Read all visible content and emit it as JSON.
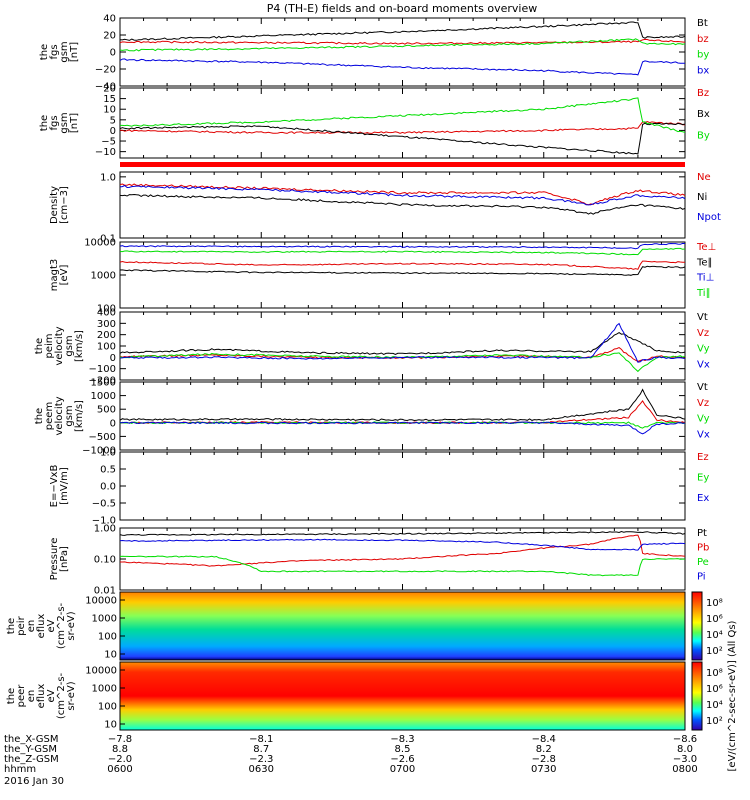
{
  "title": "P4 (TH-E) fields and on-board moments overview",
  "chart_data": [
    {
      "type": "line",
      "ylabel": [
        "the",
        "fgs",
        "gsm",
        "[nT]"
      ],
      "ylim": [
        -40,
        40
      ],
      "yticks": [
        {
          "v": 40,
          "t": "40"
        },
        {
          "v": 20,
          "t": "20"
        },
        {
          "v": 0,
          "t": "0"
        },
        {
          "v": -20,
          "t": "−20"
        },
        {
          "v": -40,
          "t": "−40"
        }
      ],
      "series": [
        {
          "name": "Bt",
          "color": "#000000",
          "x": [
            0,
            30,
            60,
            90,
            110,
            111,
            120
          ],
          "y": [
            14,
            19,
            24,
            30,
            35,
            17,
            18
          ]
        },
        {
          "name": "bz",
          "color": "#e00000",
          "x": [
            0,
            30,
            60,
            90,
            110,
            111,
            120
          ],
          "y": [
            12,
            11,
            10,
            11,
            12,
            14,
            12
          ]
        },
        {
          "name": "by",
          "color": "#00dd00",
          "x": [
            0,
            30,
            60,
            90,
            110,
            111,
            120
          ],
          "y": [
            2,
            4,
            7,
            10,
            15,
            10,
            9
          ]
        },
        {
          "name": "bx",
          "color": "#0000dd",
          "x": [
            0,
            30,
            60,
            90,
            110,
            111,
            120
          ],
          "y": [
            -9,
            -12,
            -18,
            -22,
            -27,
            -11,
            -13
          ]
        }
      ]
    },
    {
      "type": "line",
      "ylabel": [
        "the",
        "fgs",
        "gsm",
        "[nT]"
      ],
      "ylim": [
        -13,
        20
      ],
      "yticks": [
        {
          "v": 20,
          "t": "20"
        },
        {
          "v": 15,
          "t": "15"
        },
        {
          "v": 10,
          "t": "10"
        },
        {
          "v": 5,
          "t": "5"
        },
        {
          "v": 0,
          "t": "0"
        },
        {
          "v": -5,
          "t": "−5"
        },
        {
          "v": -10,
          "t": "−10"
        }
      ],
      "series": [
        {
          "name": "Bz",
          "color": "#e00000",
          "x": [
            0,
            30,
            60,
            90,
            110,
            111,
            120
          ],
          "y": [
            0,
            -1,
            -1,
            0,
            1,
            4,
            3
          ]
        },
        {
          "name": "Bx",
          "color": "#000000",
          "x": [
            0,
            30,
            60,
            90,
            110,
            111,
            120
          ],
          "y": [
            1,
            2,
            -3,
            -8,
            -11,
            3,
            3
          ]
        },
        {
          "name": "By",
          "color": "#00dd00",
          "x": [
            0,
            30,
            60,
            90,
            110,
            111,
            120
          ],
          "y": [
            2,
            4,
            7,
            10,
            15,
            4,
            -1
          ]
        }
      ]
    },
    {
      "type": "line",
      "ylabel": [
        "Density",
        "[cm−3]"
      ],
      "scale": "log",
      "ylim": [
        0.1,
        1.2
      ],
      "yticks": [
        {
          "v": 1.0,
          "t": "1.0"
        },
        {
          "v": 0.1,
          "t": "0.1"
        }
      ],
      "series": [
        {
          "name": "Ne",
          "color": "#e00000",
          "x": [
            0,
            30,
            60,
            90,
            100,
            110,
            120
          ],
          "y": [
            0.75,
            0.65,
            0.55,
            0.55,
            0.35,
            0.6,
            0.5
          ]
        },
        {
          "name": "Ni",
          "color": "#000000",
          "x": [
            0,
            30,
            60,
            90,
            100,
            110,
            120
          ],
          "y": [
            0.5,
            0.45,
            0.35,
            0.32,
            0.25,
            0.35,
            0.3
          ]
        },
        {
          "name": "Npot",
          "color": "#0000dd",
          "x": [
            0,
            30,
            60,
            90,
            100,
            110,
            120
          ],
          "y": [
            0.7,
            0.62,
            0.5,
            0.45,
            0.35,
            0.5,
            0.45
          ]
        }
      ]
    },
    {
      "type": "line",
      "ylabel": [
        "magt3",
        "[eV]"
      ],
      "scale": "log",
      "ylim": [
        100,
        10000
      ],
      "yticks": [
        {
          "v": 10000,
          "t": "10000"
        },
        {
          "v": 1000,
          "t": "1000"
        },
        {
          "v": 100,
          "t": "100"
        }
      ],
      "series": [
        {
          "name": "Te⊥",
          "color": "#e00000",
          "x": [
            0,
            30,
            60,
            90,
            110,
            111,
            120
          ],
          "y": [
            2500,
            2000,
            2200,
            2100,
            1500,
            2600,
            2400
          ]
        },
        {
          "name": "Te∥",
          "color": "#000000",
          "x": [
            0,
            30,
            60,
            90,
            110,
            111,
            120
          ],
          "y": [
            1400,
            1200,
            1150,
            1100,
            1000,
            1800,
            1700
          ]
        },
        {
          "name": "Ti⊥",
          "color": "#0000dd",
          "x": [
            0,
            30,
            60,
            90,
            110,
            111,
            120
          ],
          "y": [
            7500,
            7300,
            7200,
            7000,
            6500,
            8500,
            8800
          ]
        },
        {
          "name": "Ti∥",
          "color": "#00dd00",
          "x": [
            0,
            30,
            60,
            90,
            110,
            111,
            120
          ],
          "y": [
            5200,
            5000,
            5100,
            4800,
            4200,
            6000,
            6200
          ]
        }
      ]
    },
    {
      "type": "line",
      "ylabel": [
        "the",
        "peim",
        "velocity",
        "gsm",
        "[km/s]"
      ],
      "ylim": [
        -200,
        400
      ],
      "yticks": [
        {
          "v": 400,
          "t": "400"
        },
        {
          "v": 300,
          "t": "300"
        },
        {
          "v": 200,
          "t": "200"
        },
        {
          "v": 100,
          "t": "100"
        },
        {
          "v": 0,
          "t": "0"
        },
        {
          "v": -100,
          "t": "−100"
        },
        {
          "v": -200,
          "t": "−200"
        }
      ],
      "series": [
        {
          "name": "Vt",
          "color": "#000000",
          "x": [
            0,
            20,
            40,
            60,
            80,
            100,
            106,
            110,
            114,
            120
          ],
          "y": [
            40,
            70,
            40,
            30,
            60,
            50,
            220,
            140,
            60,
            40
          ]
        },
        {
          "name": "Vz",
          "color": "#e00000",
          "x": [
            0,
            20,
            40,
            60,
            80,
            100,
            106,
            110,
            114,
            120
          ],
          "y": [
            5,
            20,
            0,
            -5,
            10,
            0,
            80,
            -40,
            10,
            0
          ]
        },
        {
          "name": "Vy",
          "color": "#00dd00",
          "x": [
            0,
            20,
            40,
            60,
            80,
            100,
            106,
            110,
            114,
            120
          ],
          "y": [
            0,
            30,
            10,
            0,
            20,
            0,
            40,
            -120,
            0,
            10
          ]
        },
        {
          "name": "Vx",
          "color": "#0000dd",
          "x": [
            0,
            20,
            40,
            60,
            80,
            100,
            106,
            110,
            114,
            120
          ],
          "y": [
            -5,
            0,
            -10,
            0,
            0,
            -5,
            300,
            -40,
            0,
            -10
          ]
        }
      ]
    },
    {
      "type": "line",
      "ylabel": [
        "the",
        "peem",
        "velocity",
        "gsm",
        "[km/s]"
      ],
      "ylim": [
        -1000,
        1500
      ],
      "yticks": [
        {
          "v": 1500,
          "t": "1500"
        },
        {
          "v": 1000,
          "t": "1000"
        },
        {
          "v": 500,
          "t": "500"
        },
        {
          "v": 0,
          "t": "0"
        },
        {
          "v": -500,
          "t": "−500"
        },
        {
          "v": -1000,
          "t": "−1000"
        }
      ],
      "series": [
        {
          "name": "Vt",
          "color": "#000000",
          "x": [
            0,
            30,
            60,
            90,
            108,
            111,
            114,
            120
          ],
          "y": [
            120,
            130,
            110,
            120,
            500,
            1200,
            300,
            150
          ]
        },
        {
          "name": "Vz",
          "color": "#e00000",
          "x": [
            0,
            30,
            60,
            90,
            108,
            111,
            114,
            120
          ],
          "y": [
            0,
            20,
            0,
            10,
            200,
            800,
            100,
            0
          ]
        },
        {
          "name": "Vy",
          "color": "#00dd00",
          "x": [
            0,
            30,
            60,
            90,
            108,
            111,
            114,
            120
          ],
          "y": [
            0,
            0,
            10,
            0,
            0,
            -200,
            0,
            0
          ]
        },
        {
          "name": "Vx",
          "color": "#0000dd",
          "x": [
            0,
            30,
            60,
            90,
            108,
            111,
            114,
            120
          ],
          "y": [
            0,
            -10,
            0,
            0,
            -100,
            -400,
            -50,
            0
          ]
        }
      ]
    },
    {
      "type": "line",
      "ylabel": [
        "E=−VxB",
        "[mV/m]"
      ],
      "ylim": [
        -1,
        1
      ],
      "yticks": [
        {
          "v": 1.0,
          "t": "1.0"
        },
        {
          "v": 0.5,
          "t": "0.5"
        },
        {
          "v": 0,
          "t": "0.0"
        },
        {
          "v": -0.5,
          "t": "−0.5"
        },
        {
          "v": -1.0,
          "t": "−1.0"
        }
      ],
      "series": [
        {
          "name": "Ez",
          "color": "#e00000",
          "x": [],
          "y": []
        },
        {
          "name": "Ey",
          "color": "#00dd00",
          "x": [],
          "y": []
        },
        {
          "name": "Ex",
          "color": "#0000dd",
          "x": [],
          "y": []
        }
      ]
    },
    {
      "type": "line",
      "ylabel": [
        "Pressure",
        "[nPa]"
      ],
      "scale": "log",
      "ylim": [
        0.01,
        1.0
      ],
      "yticks": [
        {
          "v": 1.0,
          "t": "1.00"
        },
        {
          "v": 0.1,
          "t": "0.10"
        },
        {
          "v": 0.01,
          "t": "0.01"
        }
      ],
      "series": [
        {
          "name": "Pt",
          "color": "#000000",
          "x": [
            0,
            30,
            60,
            90,
            110,
            120
          ],
          "y": [
            0.6,
            0.62,
            0.65,
            0.7,
            0.75,
            0.65
          ]
        },
        {
          "name": "Pb",
          "color": "#e00000",
          "x": [
            0,
            20,
            40,
            60,
            80,
            100,
            110,
            111,
            120
          ],
          "y": [
            0.08,
            0.06,
            0.09,
            0.1,
            0.15,
            0.3,
            0.6,
            0.15,
            0.12
          ]
        },
        {
          "name": "Pe",
          "color": "#00dd00",
          "x": [
            0,
            20,
            30,
            60,
            90,
            100,
            110,
            111,
            120
          ],
          "y": [
            0.12,
            0.12,
            0.04,
            0.04,
            0.04,
            0.03,
            0.03,
            0.1,
            0.1
          ]
        },
        {
          "name": "Pi",
          "color": "#0000dd",
          "x": [
            0,
            20,
            40,
            60,
            80,
            100,
            110,
            111,
            120
          ],
          "y": [
            0.38,
            0.4,
            0.42,
            0.4,
            0.35,
            0.2,
            0.2,
            0.3,
            0.32
          ]
        }
      ]
    },
    {
      "type": "heatmap",
      "ylabel": [
        "the",
        "peir",
        "en",
        "eflux",
        "eV",
        "(cm^2-s-",
        "sr-eV)"
      ],
      "yticks": [
        "10000",
        "1000",
        "100",
        "10"
      ],
      "colorbar_ticks": [
        "10⁸",
        "10⁶",
        "10⁴",
        "10²"
      ]
    },
    {
      "type": "heatmap",
      "ylabel": [
        "the",
        "peer",
        "en",
        "eflux",
        "eV",
        "(cm^2-s-",
        "sr-eV)"
      ],
      "yticks": [
        "10000",
        "1000",
        "100",
        "10"
      ],
      "colorbar_ticks": [
        "10⁸",
        "10⁶",
        "10⁴",
        "10²"
      ]
    }
  ],
  "colorbar_label": "[eV/(cm^2-sec-sr-eV)] (All Qs)",
  "x_axis": {
    "xlim": [
      0,
      120
    ],
    "rows": [
      {
        "label": "the_X-GSM",
        "values": [
          "−7.8",
          "−8.1",
          "−8.3",
          "−8.4",
          "−8.6"
        ]
      },
      {
        "label": "the_Y-GSM",
        "values": [
          "8.8",
          "8.7",
          "8.5",
          "8.2",
          "8.0"
        ]
      },
      {
        "label": "the_Z-GSM",
        "values": [
          "−2.0",
          "−2.3",
          "−2.6",
          "−2.8",
          "−3.0"
        ]
      },
      {
        "label": "hhmm",
        "values": [
          "0600",
          "0630",
          "0700",
          "0730",
          "0800"
        ]
      }
    ],
    "date": "2016 Jan 30"
  }
}
